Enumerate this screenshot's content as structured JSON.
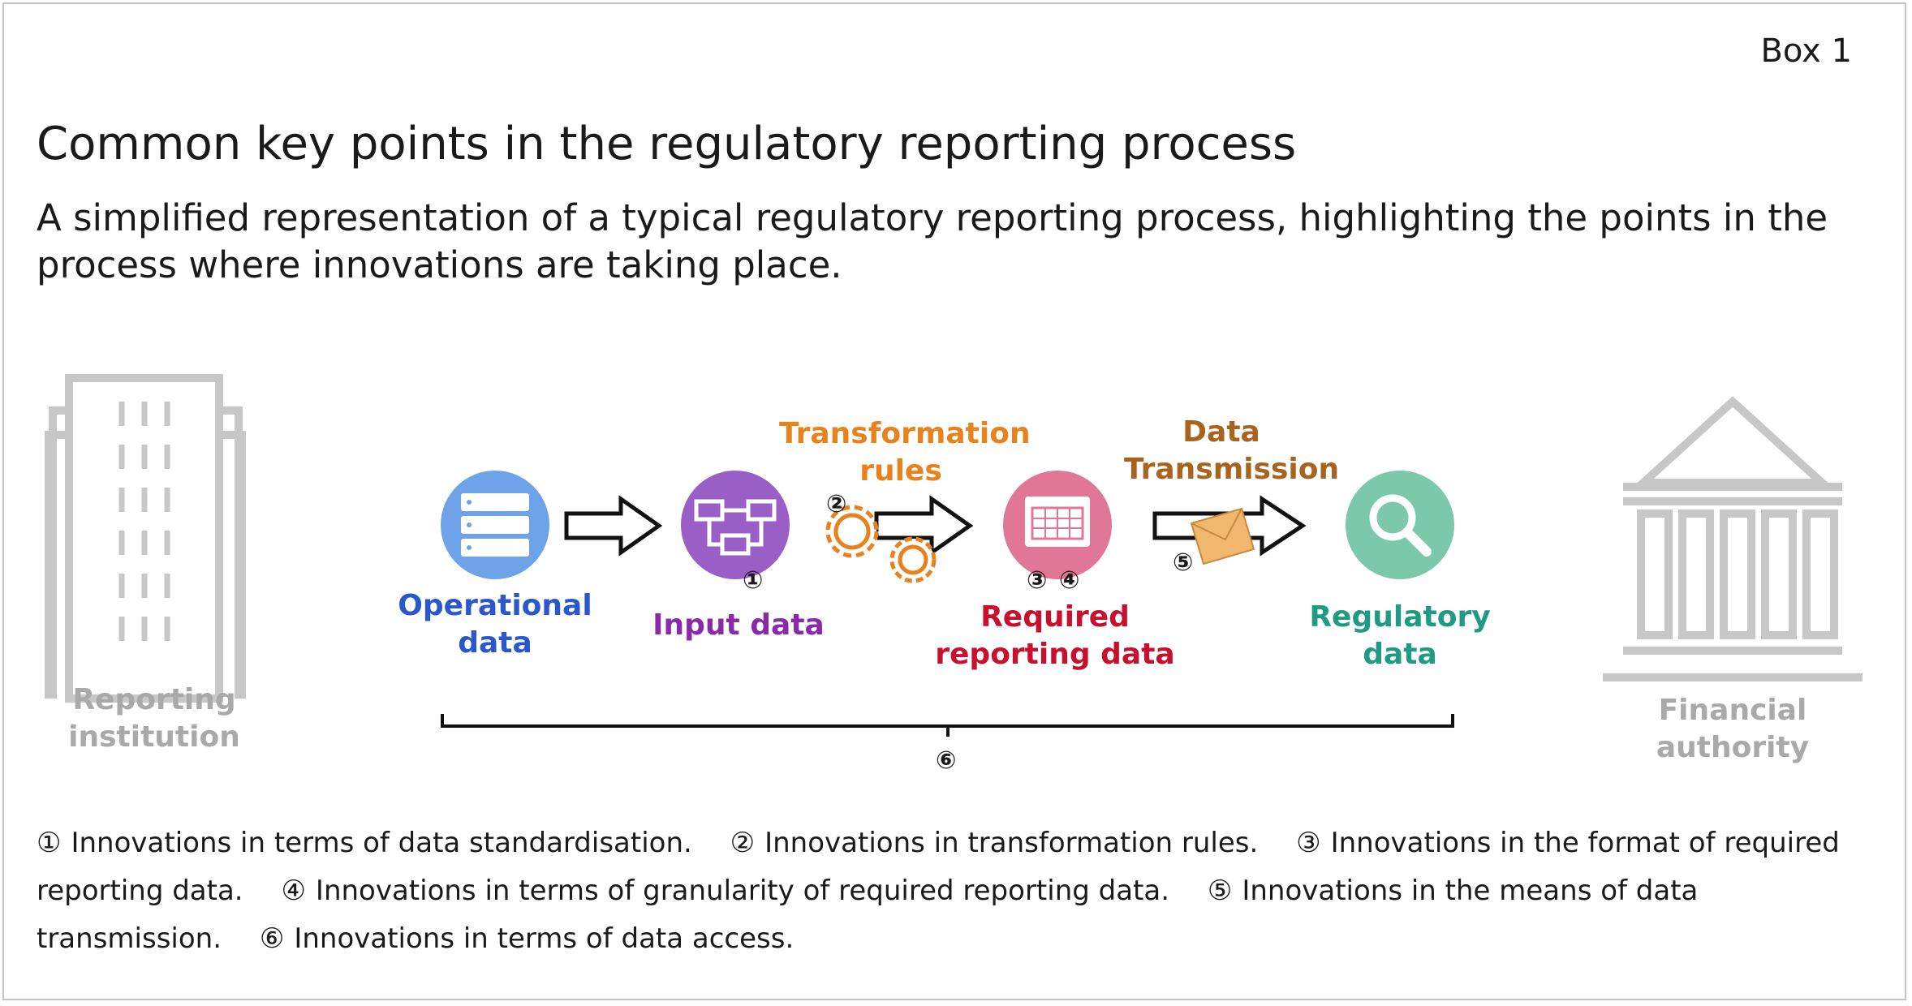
{
  "box_label": "Box 1",
  "title": "Common key points in the regulatory reporting process",
  "subtitle": "A simplified representation of a typical regulatory reporting process, highlighting the points in the process where innovations are taking place.",
  "colors": {
    "gray": "#b8b8b8",
    "blue": "#2a57c9",
    "purple": "#8a2aa8",
    "orange": "#e8821e",
    "red": "#c8102e",
    "brown": "#a8641e",
    "teal": "#1f9a83"
  },
  "diagram": {
    "reporting_institution": "Reporting\ninstitution",
    "financial_authority": "Financial\nauthority",
    "operational_data": "Operational\ndata",
    "input_data": "Input data",
    "transformation_rules": "Transformation\nrules",
    "required_reporting_data": "Required\nreporting data",
    "data_transmission": "Data\nTransmission",
    "regulatory_data": "Regulatory\ndata",
    "markers": {
      "m1": "①",
      "m2": "②",
      "m3": "③",
      "m4": "④",
      "m5": "⑤",
      "m6": "⑥"
    }
  },
  "notes": [
    {
      "mark": "①",
      "text": "Innovations in terms of data standardisation."
    },
    {
      "mark": "②",
      "text": "Innovations in transformation rules."
    },
    {
      "mark": "③",
      "text": "Innovations in the format of required reporting data."
    },
    {
      "mark": "④",
      "text": "Innovations in terms of granularity of required reporting data."
    },
    {
      "mark": "⑤",
      "text": "Innovations in the means of data transmission."
    },
    {
      "mark": "⑥",
      "text": "Innovations in terms of data access."
    }
  ]
}
